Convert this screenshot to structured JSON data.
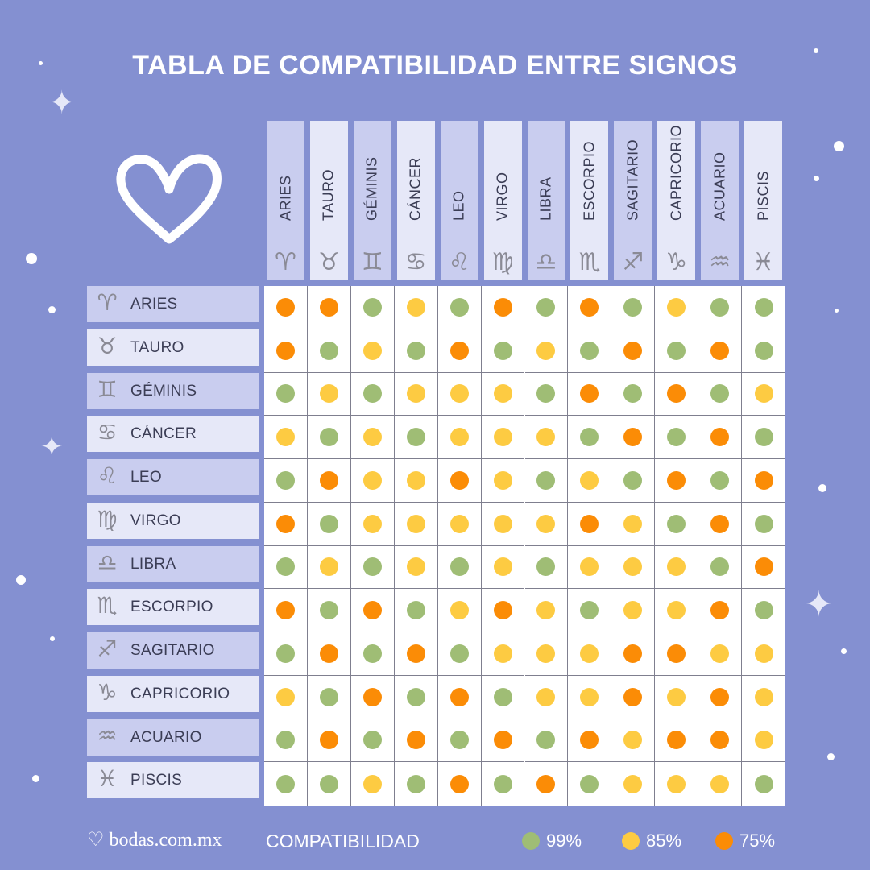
{
  "title": "TABLA DE COMPATIBILIDAD ENTRE SIGNOS",
  "colors": {
    "background": "#8490d1",
    "99": "#9fbd75",
    "85": "#fdcb42",
    "75": "#fb8c06"
  },
  "signs": [
    {
      "name": "ARIES",
      "icon": "aries-icon",
      "symbol": "♈︎"
    },
    {
      "name": "TAURO",
      "icon": "taurus-icon",
      "symbol": "♉︎"
    },
    {
      "name": "GÉMINIS",
      "icon": "gemini-icon",
      "symbol": "♊︎"
    },
    {
      "name": "CÁNCER",
      "icon": "cancer-icon",
      "symbol": "♋︎"
    },
    {
      "name": "LEO",
      "icon": "leo-icon",
      "symbol": "♌︎"
    },
    {
      "name": "VIRGO",
      "icon": "virgo-icon",
      "symbol": "♍︎"
    },
    {
      "name": "LIBRA",
      "icon": "libra-icon",
      "symbol": "♎︎"
    },
    {
      "name": "ESCORPIO",
      "icon": "scorpio-icon",
      "symbol": "♏︎"
    },
    {
      "name": "SAGITARIO",
      "icon": "sagittarius-icon",
      "symbol": "♐︎"
    },
    {
      "name": "CAPRICORIO",
      "icon": "capricorn-icon",
      "symbol": "♑︎"
    },
    {
      "name": "ACUARIO",
      "icon": "aquarius-icon",
      "symbol": "♒︎"
    },
    {
      "name": "PISCIS",
      "icon": "pisces-icon",
      "symbol": "♓︎"
    }
  ],
  "chart_data": {
    "type": "heatmap",
    "title": "TABLA DE COMPATIBILIDAD ENTRE SIGNOS",
    "rows": [
      "ARIES",
      "TAURO",
      "GÉMINIS",
      "CÁNCER",
      "LEO",
      "VIRGO",
      "LIBRA",
      "ESCORPIO",
      "SAGITARIO",
      "CAPRICORIO",
      "ACUARIO",
      "PISCIS"
    ],
    "columns": [
      "ARIES",
      "TAURO",
      "GÉMINIS",
      "CÁNCER",
      "LEO",
      "VIRGO",
      "LIBRA",
      "ESCORPIO",
      "SAGITARIO",
      "CAPRICORIO",
      "ACUARIO",
      "PISCIS"
    ],
    "values": [
      [
        75,
        75,
        99,
        85,
        99,
        75,
        99,
        75,
        99,
        85,
        99,
        99
      ],
      [
        75,
        99,
        85,
        99,
        75,
        99,
        85,
        99,
        75,
        99,
        75,
        99
      ],
      [
        99,
        85,
        99,
        85,
        85,
        85,
        99,
        75,
        99,
        75,
        99,
        85
      ],
      [
        85,
        99,
        85,
        99,
        85,
        85,
        85,
        99,
        75,
        99,
        75,
        99
      ],
      [
        99,
        75,
        85,
        85,
        75,
        85,
        99,
        85,
        99,
        75,
        99,
        75
      ],
      [
        75,
        99,
        85,
        85,
        85,
        85,
        85,
        75,
        85,
        99,
        75,
        99
      ],
      [
        99,
        85,
        99,
        85,
        99,
        85,
        99,
        85,
        85,
        85,
        99,
        75
      ],
      [
        75,
        99,
        75,
        99,
        85,
        75,
        85,
        99,
        85,
        85,
        75,
        99
      ],
      [
        99,
        75,
        99,
        75,
        99,
        85,
        85,
        85,
        75,
        75,
        85,
        85
      ],
      [
        85,
        99,
        75,
        99,
        75,
        99,
        85,
        85,
        75,
        85,
        75,
        85
      ],
      [
        99,
        75,
        99,
        75,
        99,
        75,
        99,
        75,
        85,
        75,
        75,
        85
      ],
      [
        99,
        99,
        85,
        99,
        75,
        99,
        75,
        99,
        85,
        85,
        85,
        99
      ]
    ],
    "legend": {
      "title": "COMPATIBILIDAD",
      "placement": "bottom",
      "entries": [
        {
          "value": 99,
          "label": "99%",
          "color": "#9fbd75"
        },
        {
          "value": 85,
          "label": "85%",
          "color": "#fdcb42"
        },
        {
          "value": 75,
          "label": "75%",
          "color": "#fb8c06"
        }
      ]
    }
  },
  "footer": {
    "logo": "bodas.com.mx",
    "legend_title": "COMPATIBILIDAD"
  }
}
